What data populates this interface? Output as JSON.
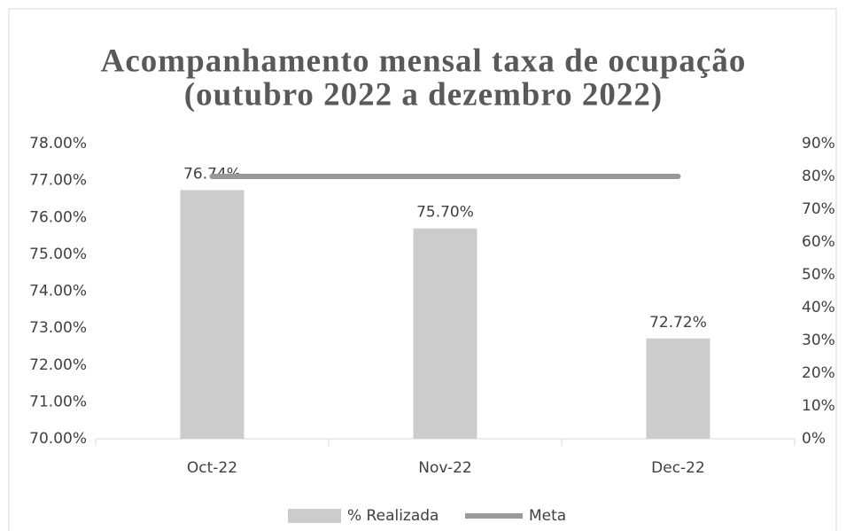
{
  "chart_data": {
    "type": "bar",
    "title": [
      "Acompanhamento mensal taxa de ocupação",
      "(outubro 2022 a dezembro 2022)"
    ],
    "categories": [
      "Oct-22",
      "Nov-22",
      "Dec-22"
    ],
    "series": [
      {
        "name": "% Realizada",
        "color": "#cccccc",
        "values": [
          76.74,
          75.7,
          72.72
        ],
        "value_labels": [
          "76.74%",
          "75.70%",
          "72.72%"
        ]
      },
      {
        "name": "Meta",
        "color": "#999999",
        "type": "line",
        "axis": "y2",
        "values": [
          80,
          80,
          80
        ]
      }
    ],
    "ylim": [
      70,
      78
    ],
    "yticks": [
      {
        "value": 70,
        "label": "70.00%"
      },
      {
        "value": 71,
        "label": "71.00%"
      },
      {
        "value": 72,
        "label": "72.00%"
      },
      {
        "value": 73,
        "label": "73.00%"
      },
      {
        "value": 74,
        "label": "74.00%"
      },
      {
        "value": 75,
        "label": "75.00%"
      },
      {
        "value": 76,
        "label": "76.00%"
      },
      {
        "value": 77,
        "label": "77.00%"
      },
      {
        "value": 78,
        "label": "78.00%"
      }
    ],
    "y2lim": [
      0,
      90
    ],
    "y2ticks": [
      {
        "value": 0,
        "label": "0%"
      },
      {
        "value": 10,
        "label": "10%"
      },
      {
        "value": 20,
        "label": "20%"
      },
      {
        "value": 30,
        "label": "30%"
      },
      {
        "value": 40,
        "label": "40%"
      },
      {
        "value": 50,
        "label": "50%"
      },
      {
        "value": 60,
        "label": "60%"
      },
      {
        "value": 70,
        "label": "70%"
      },
      {
        "value": 80,
        "label": "80%"
      },
      {
        "value": 90,
        "label": "90%"
      }
    ],
    "legend": "bottom"
  }
}
